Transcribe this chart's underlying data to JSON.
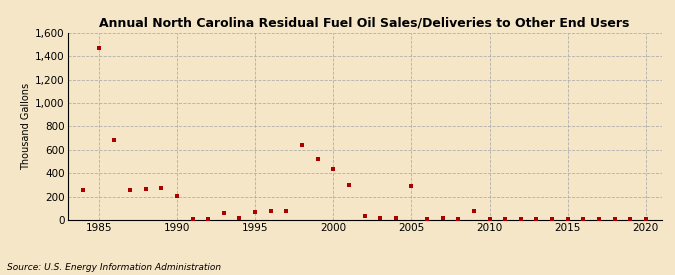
{
  "title": "Annual North Carolina Residual Fuel Oil Sales/Deliveries to Other End Users",
  "ylabel": "Thousand Gallons",
  "source": "Source: U.S. Energy Information Administration",
  "background_color": "#f5e6c8",
  "point_color": "#aa0000",
  "xlim": [
    1983,
    2021
  ],
  "ylim": [
    0,
    1600
  ],
  "yticks": [
    0,
    200,
    400,
    600,
    800,
    1000,
    1200,
    1400,
    1600
  ],
  "xticks": [
    1985,
    1990,
    1995,
    2000,
    2005,
    2010,
    2015,
    2020
  ],
  "years": [
    1984,
    1985,
    1986,
    1987,
    1988,
    1989,
    1990,
    1991,
    1992,
    1993,
    1994,
    1995,
    1996,
    1997,
    1998,
    1999,
    2000,
    2001,
    2002,
    2003,
    2004,
    2005,
    2006,
    2007,
    2008,
    2009,
    2010,
    2011,
    2012,
    2013,
    2014,
    2015,
    2016,
    2017,
    2018,
    2019,
    2020
  ],
  "values": [
    253,
    1470,
    685,
    255,
    268,
    270,
    208,
    10,
    5,
    60,
    15,
    65,
    80,
    75,
    640,
    525,
    440,
    298,
    30,
    20,
    15,
    292,
    5,
    15,
    10,
    80,
    5,
    5,
    5,
    5,
    5,
    5,
    5,
    5,
    5,
    5,
    5
  ]
}
